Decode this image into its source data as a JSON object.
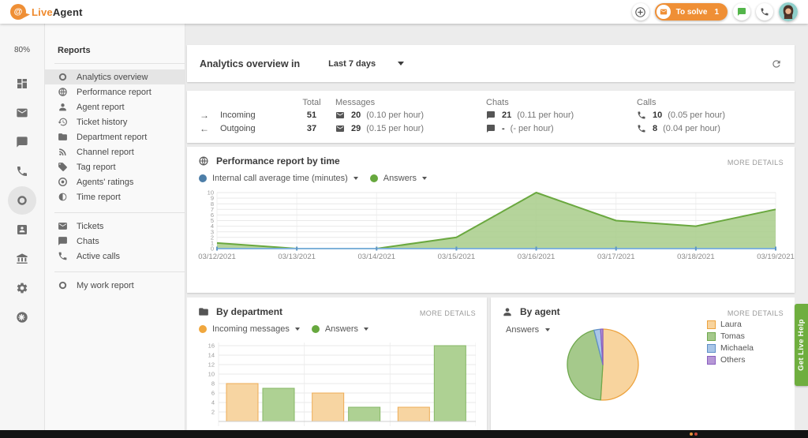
{
  "topbar": {
    "brand": {
      "at": "@",
      "live": "Live",
      "agent": "Agent"
    },
    "to_solve_label": "To solve",
    "to_solve_count": "1"
  },
  "rail": {
    "availability": "80%",
    "items": [
      {
        "icon": "grid",
        "name": "dashboard"
      },
      {
        "icon": "mail",
        "name": "tickets"
      },
      {
        "icon": "chat",
        "name": "chats"
      },
      {
        "icon": "phone",
        "name": "calls"
      },
      {
        "icon": "donut",
        "name": "reports",
        "active": true
      },
      {
        "icon": "card",
        "name": "customers"
      },
      {
        "icon": "bank",
        "name": "billing"
      },
      {
        "icon": "gear",
        "name": "settings"
      },
      {
        "icon": "star",
        "name": "more"
      }
    ]
  },
  "reports_panel": {
    "title": "Reports",
    "groups": [
      {
        "items": [
          {
            "icon": "donut",
            "label": "Analytics overview",
            "selected": true
          },
          {
            "icon": "globe",
            "label": "Performance report"
          },
          {
            "icon": "person",
            "label": "Agent report"
          },
          {
            "icon": "history",
            "label": "Ticket history"
          },
          {
            "icon": "folder",
            "label": "Department report"
          },
          {
            "icon": "rss",
            "label": "Channel report"
          },
          {
            "icon": "tag",
            "label": "Tag report"
          },
          {
            "icon": "target",
            "label": "Agents' ratings"
          },
          {
            "icon": "contrast",
            "label": "Time report"
          }
        ]
      },
      {
        "items": [
          {
            "icon": "mail",
            "label": "Tickets"
          },
          {
            "icon": "chat",
            "label": "Chats"
          },
          {
            "icon": "phone",
            "label": "Active calls"
          }
        ]
      },
      {
        "items": [
          {
            "icon": "donut",
            "label": "My work report"
          }
        ]
      }
    ]
  },
  "main": {
    "header": {
      "title": "Analytics overview in",
      "range": "Last 7 days"
    },
    "stats": {
      "columns": [
        "Total",
        "Messages",
        "Chats",
        "Calls"
      ],
      "rows": [
        {
          "arrow": "→",
          "label": "Incoming",
          "total": "51",
          "messages": {
            "value": "20",
            "rate": "(0.10 per hour)"
          },
          "chats": {
            "value": "21",
            "rate": "(0.11 per hour)"
          },
          "calls": {
            "value": "10",
            "rate": "(0.05 per hour)"
          }
        },
        {
          "arrow": "←",
          "label": "Outgoing",
          "total": "37",
          "messages": {
            "value": "29",
            "rate": "(0.15 per hour)"
          },
          "chats": {
            "value": "-",
            "rate": "(- per hour)"
          },
          "calls": {
            "value": "8",
            "rate": "(0.04 per hour)"
          }
        }
      ]
    },
    "performance": {
      "title": "Performance report by time",
      "more": "MORE DETAILS",
      "legend": [
        {
          "label": "Internal call average time (minutes)",
          "color": "#4d7ea8"
        },
        {
          "label": "Answers",
          "color": "#67a83e"
        }
      ]
    },
    "by_department": {
      "title": "By department",
      "more": "MORE DETAILS",
      "legend": [
        {
          "label": "Incoming messages",
          "color": "#f0a73e"
        },
        {
          "label": "Answers",
          "color": "#67a83e"
        }
      ]
    },
    "by_agent": {
      "title": "By agent",
      "more": "MORE DETAILS",
      "metric": "Answers"
    }
  },
  "chart_data": [
    {
      "id": "performance_by_time",
      "type": "area",
      "x": [
        "03/12/2021",
        "03/13/2021",
        "03/14/2021",
        "03/15/2021",
        "03/16/2021",
        "03/17/2021",
        "03/18/2021",
        "03/19/2021"
      ],
      "series": [
        {
          "name": "Internal call average time (minutes)",
          "color": "#7fb2d9",
          "values": [
            0,
            0,
            0,
            0,
            0,
            0,
            0,
            0
          ]
        },
        {
          "name": "Answers",
          "color": "#6aa83f",
          "fill": "#a8cd8a",
          "values": [
            1,
            0,
            0,
            2,
            10,
            5,
            4,
            7
          ]
        }
      ],
      "ylim": [
        0,
        10
      ],
      "ytick_step": 1,
      "grid": true,
      "legend_position": "top-left"
    },
    {
      "id": "by_department",
      "type": "bar",
      "categories": [
        "",
        "",
        ""
      ],
      "series": [
        {
          "name": "Incoming messages",
          "fill": "#f7d5a2",
          "stroke": "#eeac55",
          "values": [
            8,
            6,
            3
          ]
        },
        {
          "name": "Answers",
          "fill": "#aed193",
          "stroke": "#85b765",
          "values": [
            7,
            3,
            16
          ]
        }
      ],
      "yticks": [
        2,
        4,
        6,
        8,
        10,
        12,
        14,
        16
      ],
      "grid": true,
      "note": "x-axis labels clipped by viewport"
    },
    {
      "id": "by_agent",
      "type": "pie",
      "metric": "Answers",
      "slices": [
        {
          "label": "Laura",
          "value": 51,
          "fill": "#f8d49e",
          "stroke": "#eda33f"
        },
        {
          "label": "Tomas",
          "value": 45,
          "fill": "#a5c98b",
          "stroke": "#6fa84e"
        },
        {
          "label": "Michaela",
          "value": 3,
          "fill": "#a9c6e8",
          "stroke": "#5f8fc7"
        },
        {
          "label": "Others",
          "value": 1,
          "fill": "#b698d6",
          "stroke": "#8a5fc0"
        }
      ],
      "legend_position": "right"
    }
  ],
  "help_tab": "Get Live Help"
}
